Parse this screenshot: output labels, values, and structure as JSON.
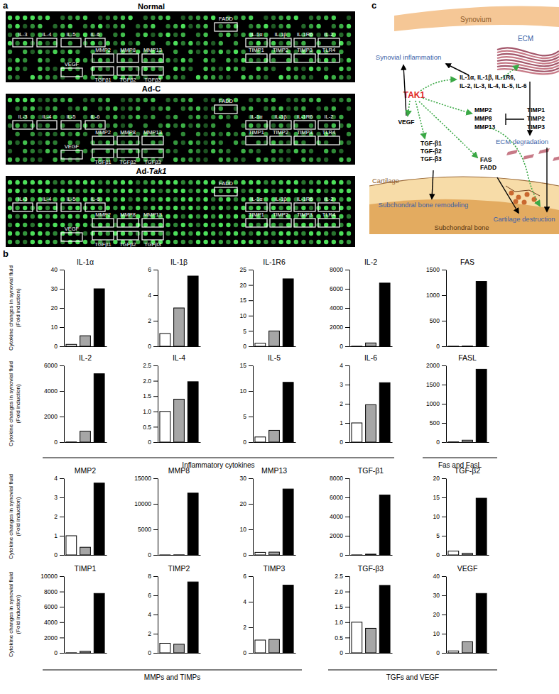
{
  "panel_labels": [
    "a",
    "b",
    "c"
  ],
  "array_panel": {
    "arrays": [
      "Normal",
      "Ad-C",
      "Ad-Tak1"
    ],
    "spots": [
      "IL-3",
      "IL-4",
      "IL-5",
      "IL-6",
      "FADD",
      "IL-1α",
      "IL-1β",
      "IL-1R6",
      "IL-2",
      "MMP2",
      "MMP8",
      "MMP13",
      "TIMP1",
      "TIMP2",
      "TIMP3",
      "TLR4",
      "VEGF",
      "TGFβ1",
      "TGFβ2",
      "TGFβ3"
    ]
  },
  "group_labels": [
    "Inflammatory cytokines",
    "Fas and FasL",
    "MMPs and TIMPs",
    "TGFs and VEGF"
  ],
  "diagram": {
    "synovium": "Synovium",
    "synovial_inflammation": "Synovial inflammation",
    "ecm": "ECM",
    "cytokines": [
      "IL-1α, IL-1β, IL-1R6,",
      "IL-2, IL-3, IL-4, IL-5, IL-6"
    ],
    "tak1": "TAK1",
    "mmps": [
      "MMP2",
      "MMP8",
      "MMP13"
    ],
    "timps": [
      "TIMP1",
      "TIMP2",
      "TIMP3"
    ],
    "ecm_degradation": "ECM degradation",
    "vegf": "VEGF",
    "tgfs": [
      "TGF-β1",
      "TGF-β2",
      "TGF-β3"
    ],
    "fas": [
      "FAS",
      "FADD"
    ],
    "cartilage": "Cartilage",
    "subchondral_bone_remodeling": "Subchondral bone remodeling",
    "cartilage_destruction": "Cartilage destruction",
    "subchondral_bone": "Subchondral bone"
  },
  "chart_data": [
    {
      "type": "bar",
      "title": "IL-1α",
      "ylabel": "Cytokine changes in synovial fluid (Fold induction)",
      "categories": [
        null,
        null,
        null
      ],
      "values": [
        1,
        5.5,
        30
      ],
      "colors": [
        "#ffffff",
        "#a6a6a6",
        "#000000"
      ],
      "ylim": [
        0,
        40
      ],
      "yticks": [
        0,
        10,
        20,
        30,
        40
      ],
      "tick_labels": "y"
    },
    {
      "type": "bar",
      "title": "IL-1β",
      "categories": [
        null,
        null,
        null
      ],
      "values": [
        1,
        3,
        5.5
      ],
      "colors": [
        "#ffffff",
        "#a6a6a6",
        "#000000"
      ],
      "ylim": [
        0,
        6
      ],
      "yticks": [
        0,
        2,
        4,
        6
      ],
      "tick_labels": "y"
    },
    {
      "type": "bar",
      "title": "IL-1R6",
      "categories": [
        null,
        null,
        null
      ],
      "values": [
        1,
        5,
        22
      ],
      "colors": [
        "#ffffff",
        "#a6a6a6",
        "#000000"
      ],
      "ylim": [
        0,
        25
      ],
      "yticks": [
        0,
        5,
        10,
        15,
        20,
        25
      ],
      "tick_labels": "y"
    },
    {
      "type": "bar",
      "title": "IL-2",
      "categories": [
        null,
        null,
        null
      ],
      "values": [
        10,
        350,
        6600
      ],
      "colors": [
        "#ffffff",
        "#a6a6a6",
        "#000000"
      ],
      "ylim": [
        0,
        8000
      ],
      "yticks": [
        0,
        2000,
        4000,
        6000,
        8000
      ],
      "tick_labels": "y"
    },
    {
      "type": "bar",
      "title": "FAS",
      "categories": [
        null,
        null,
        null
      ],
      "values": [
        2,
        5,
        1270
      ],
      "colors": [
        "#ffffff",
        "#a6a6a6",
        "#000000"
      ],
      "ylim": [
        0,
        1500
      ],
      "yticks": [
        0,
        500,
        1000,
        1500
      ],
      "tick_labels": "y"
    },
    {
      "type": "bar",
      "title": "IL-2",
      "ylabel": "Cytokine changes in synovial fluid (Fold induction)",
      "categories": [
        null,
        null,
        null
      ],
      "values": [
        10,
        850,
        5350
      ],
      "colors": [
        "#ffffff",
        "#a6a6a6",
        "#000000"
      ],
      "ylim": [
        0,
        6000
      ],
      "yticks": [
        0,
        2000,
        4000,
        6000
      ],
      "tick_labels": "y"
    },
    {
      "type": "bar",
      "title": "IL-4",
      "categories": [
        null,
        null,
        null
      ],
      "values": [
        1,
        1.4,
        1.97
      ],
      "colors": [
        "#ffffff",
        "#a6a6a6",
        "#000000"
      ],
      "ylim": [
        0,
        2.5
      ],
      "yticks": [
        0,
        0.5,
        {
          "value": 1,
          "label": "1.0"
        },
        1.5,
        {
          "value": 2,
          "label": "2.0"
        },
        2.5
      ],
      "tick_labels": "y"
    },
    {
      "type": "bar",
      "title": "IL-5",
      "categories": [
        null,
        null,
        null
      ],
      "values": [
        1,
        2.3,
        11.7
      ],
      "colors": [
        "#ffffff",
        "#a6a6a6",
        "#000000"
      ],
      "ylim": [
        0,
        15
      ],
      "yticks": [
        0,
        5,
        10,
        15
      ],
      "tick_labels": "y"
    },
    {
      "type": "bar",
      "title": "IL-6",
      "categories": [
        null,
        null,
        null
      ],
      "values": [
        1,
        1.95,
        3.1
      ],
      "colors": [
        "#ffffff",
        "#a6a6a6",
        "#000000"
      ],
      "ylim": [
        0,
        4
      ],
      "yticks": [
        0,
        1,
        2,
        3,
        4
      ],
      "tick_labels": "y"
    },
    {
      "type": "bar",
      "title": "FASL",
      "categories": [
        null,
        null,
        null
      ],
      "values": [
        5,
        50,
        1900
      ],
      "colors": [
        "#ffffff",
        "#a6a6a6",
        "#000000"
      ],
      "ylim": [
        0,
        2000
      ],
      "yticks": [
        0,
        500,
        1000,
        1500,
        2000
      ],
      "tick_labels": "y"
    },
    {
      "type": "bar",
      "title": "MMP2",
      "ylabel": "Cytokine changes in synovial fluid (Fold induction)",
      "categories": [
        null,
        null,
        null
      ],
      "values": [
        1,
        0.4,
        3.75
      ],
      "colors": [
        "#ffffff",
        "#a6a6a6",
        "#000000"
      ],
      "ylim": [
        0,
        4
      ],
      "yticks": [
        0,
        1,
        2,
        3,
        4
      ],
      "tick_labels": "y"
    },
    {
      "type": "bar",
      "title": "MMP8",
      "categories": [
        null,
        null,
        null
      ],
      "values": [
        5,
        20,
        12100
      ],
      "colors": [
        "#ffffff",
        "#a6a6a6",
        "#000000"
      ],
      "ylim": [
        0,
        15000
      ],
      "yticks": [
        0,
        5000,
        10000,
        15000
      ],
      "tick_labels": "y"
    },
    {
      "type": "bar",
      "title": "MMP13",
      "categories": [
        null,
        null,
        null
      ],
      "values": [
        1,
        1.1,
        25.8
      ],
      "colors": [
        "#ffffff",
        "#a6a6a6",
        "#000000"
      ],
      "ylim": [
        0,
        30
      ],
      "yticks": [
        0,
        10,
        20,
        30
      ],
      "tick_labels": "y"
    },
    {
      "type": "bar",
      "title": "TGF-β1",
      "categories": [
        null,
        null,
        null
      ],
      "values": [
        5,
        80,
        6250
      ],
      "colors": [
        "#ffffff",
        "#a6a6a6",
        "#000000"
      ],
      "ylim": [
        0,
        8000
      ],
      "yticks": [
        0,
        2000,
        4000,
        6000,
        8000
      ],
      "tick_labels": "y"
    },
    {
      "type": "bar",
      "title": "TGF-β2",
      "categories": [
        null,
        null,
        null
      ],
      "values": [
        1,
        0.4,
        14.8
      ],
      "colors": [
        "#ffffff",
        "#a6a6a6",
        "#000000"
      ],
      "ylim": [
        0,
        20
      ],
      "yticks": [
        0,
        5,
        10,
        15,
        20
      ],
      "tick_labels": "y"
    },
    {
      "type": "bar",
      "title": "TIMP1",
      "ylabel": "Cytokine changes in synovial fluid (Fold induction)",
      "categories": [
        null,
        null,
        null
      ],
      "values": [
        10,
        200,
        7750
      ],
      "colors": [
        "#ffffff",
        "#a6a6a6",
        "#000000"
      ],
      "ylim": [
        0,
        10000
      ],
      "yticks": [
        0,
        2000,
        4000,
        6000,
        8000,
        10000
      ],
      "tick_labels": "y"
    },
    {
      "type": "bar",
      "title": "TIMP2",
      "categories": [
        null,
        null,
        null
      ],
      "values": [
        1,
        0.9,
        7.4
      ],
      "colors": [
        "#ffffff",
        "#a6a6a6",
        "#000000"
      ],
      "ylim": [
        0,
        8
      ],
      "yticks": [
        0,
        2,
        4,
        6,
        8
      ],
      "tick_labels": "y"
    },
    {
      "type": "bar",
      "title": "TIMP3",
      "categories": [
        null,
        null,
        null
      ],
      "values": [
        1,
        1.05,
        5.3
      ],
      "colors": [
        "#ffffff",
        "#a6a6a6",
        "#000000"
      ],
      "ylim": [
        0,
        6
      ],
      "yticks": [
        0,
        2,
        4,
        6
      ],
      "tick_labels": "y"
    },
    {
      "type": "bar",
      "title": "TGF-β3",
      "categories": [
        null,
        null,
        null
      ],
      "values": [
        1,
        0.8,
        2.2
      ],
      "colors": [
        "#ffffff",
        "#a6a6a6",
        "#000000"
      ],
      "ylim": [
        0,
        2.5
      ],
      "yticks": [
        0,
        0.5,
        {
          "value": 1,
          "label": "1.0"
        },
        1.5,
        {
          "value": 2,
          "label": "2.0"
        },
        2.5
      ],
      "tick_labels": "y"
    },
    {
      "type": "bar",
      "title": "VEGF",
      "categories": [
        null,
        null,
        null
      ],
      "values": [
        1,
        5.8,
        31
      ],
      "colors": [
        "#ffffff",
        "#a6a6a6",
        "#000000"
      ],
      "ylim": [
        0,
        40
      ],
      "yticks": [
        0,
        10,
        20,
        30,
        40
      ],
      "tick_labels": "y"
    }
  ]
}
